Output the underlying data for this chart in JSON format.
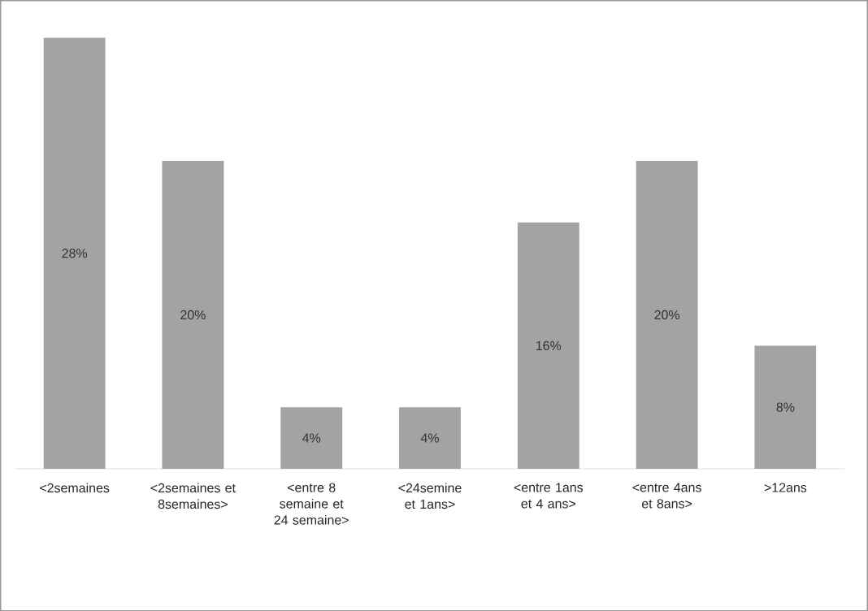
{
  "chart_data": {
    "type": "bar",
    "categories": [
      "<2semaines",
      "<2semaines et 8semaines>",
      "<entre 8 semaine et 24 semaine>",
      "<24semine et 1ans>",
      "<entre 1ans et 4 ans>",
      "<entre 4ans et 8ans>",
      ">12ans"
    ],
    "values": [
      28,
      20,
      4,
      4,
      16,
      20,
      8
    ],
    "value_labels": [
      "28%",
      "20%",
      "4%",
      "4%",
      "16%",
      "20%",
      "8%"
    ],
    "color": "#a3a3a3"
  }
}
